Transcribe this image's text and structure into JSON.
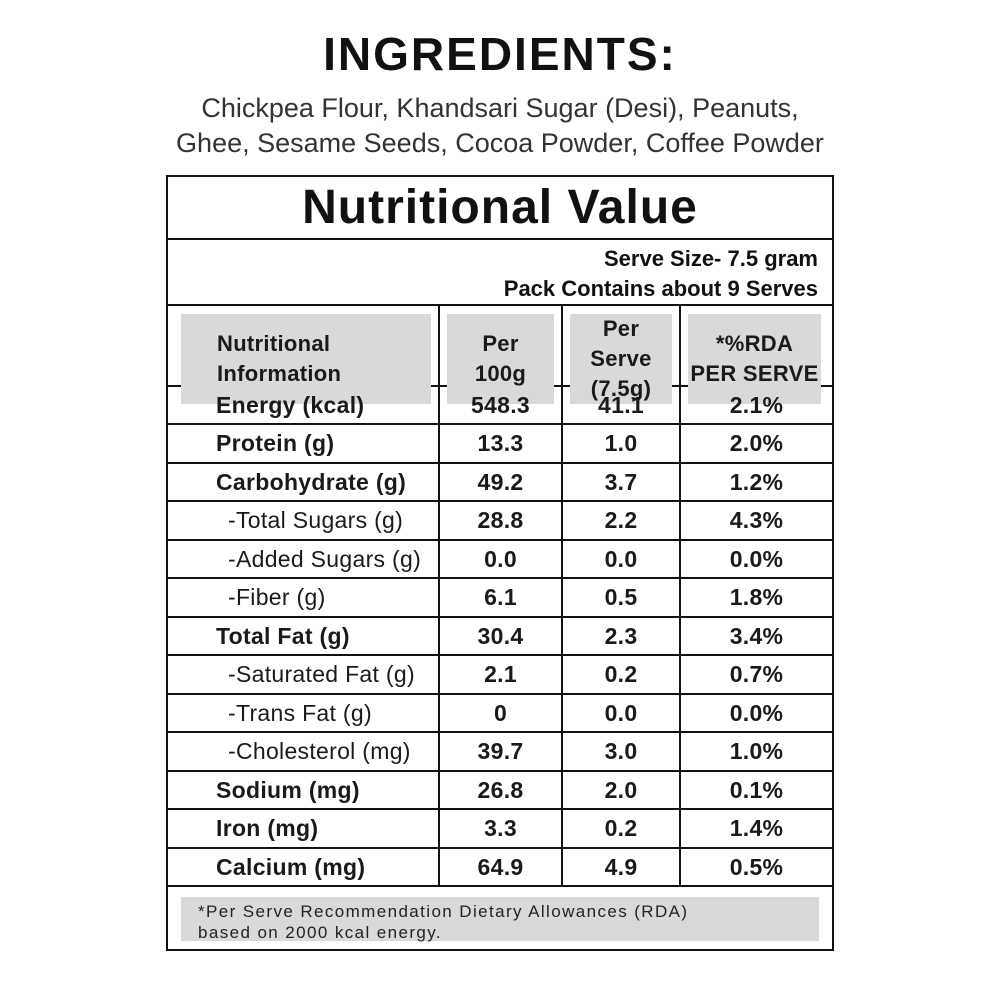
{
  "ingredients": {
    "title": "INGREDIENTS:",
    "line1": "Chickpea Flour, Khandsari Sugar (Desi), Peanuts,",
    "line2": "Ghee, Sesame Seeds, Cocoa Powder, Coffee Powder"
  },
  "table": {
    "title": "Nutritional Value",
    "serve_size": "Serve Size- 7.5 gram",
    "pack_contains": "Pack Contains about 9 Serves",
    "header": {
      "info_line1": "Nutritional",
      "info_line2": "Information",
      "per100_line1": "Per",
      "per100_line2": "100g",
      "perserve_line1": "Per Serve",
      "perserve_line2": "(7.5g)",
      "rda_line1": "*%RDA",
      "rda_line2": "PER SERVE"
    },
    "rows": [
      {
        "label": "Energy (kcal)",
        "per_100g": "548.3",
        "per_serve": "41.1",
        "rda": "2.1%",
        "indent": false
      },
      {
        "label": "Protein (g)",
        "per_100g": "13.3",
        "per_serve": "1.0",
        "rda": "2.0%",
        "indent": false
      },
      {
        "label": "Carbohydrate (g)",
        "per_100g": "49.2",
        "per_serve": "3.7",
        "rda": "1.2%",
        "indent": false
      },
      {
        "label": "-Total Sugars (g)",
        "per_100g": "28.8",
        "per_serve": "2.2",
        "rda": "4.3%",
        "indent": true
      },
      {
        "label": "-Added Sugars (g)",
        "per_100g": "0.0",
        "per_serve": "0.0",
        "rda": "0.0%",
        "indent": true
      },
      {
        "label": "-Fiber (g)",
        "per_100g": "6.1",
        "per_serve": "0.5",
        "rda": "1.8%",
        "indent": true
      },
      {
        "label": "Total Fat (g)",
        "per_100g": "30.4",
        "per_serve": "2.3",
        "rda": "3.4%",
        "indent": false
      },
      {
        "label": "-Saturated Fat (g)",
        "per_100g": "2.1",
        "per_serve": "0.2",
        "rda": "0.7%",
        "indent": true
      },
      {
        "label": "-Trans Fat (g)",
        "per_100g": "0",
        "per_serve": "0.0",
        "rda": "0.0%",
        "indent": true
      },
      {
        "label": "-Cholesterol (mg)",
        "per_100g": "39.7",
        "per_serve": "3.0",
        "rda": "1.0%",
        "indent": true
      },
      {
        "label": "Sodium (mg)",
        "per_100g": "26.8",
        "per_serve": "2.0",
        "rda": "0.1%",
        "indent": false
      },
      {
        "label": "Iron (mg)",
        "per_100g": "3.3",
        "per_serve": "0.2",
        "rda": "1.4%",
        "indent": false
      },
      {
        "label": "Calcium (mg)",
        "per_100g": "64.9",
        "per_serve": "4.9",
        "rda": "0.5%",
        "indent": false
      }
    ],
    "footnote_line1": "*Per Serve Recommendation Dietary Allowances (RDA)",
    "footnote_line2": "based on 2000 kcal energy."
  },
  "colors": {
    "header_bg": "#d9d9d9",
    "border": "#111111",
    "text": "#1a1a1a"
  }
}
